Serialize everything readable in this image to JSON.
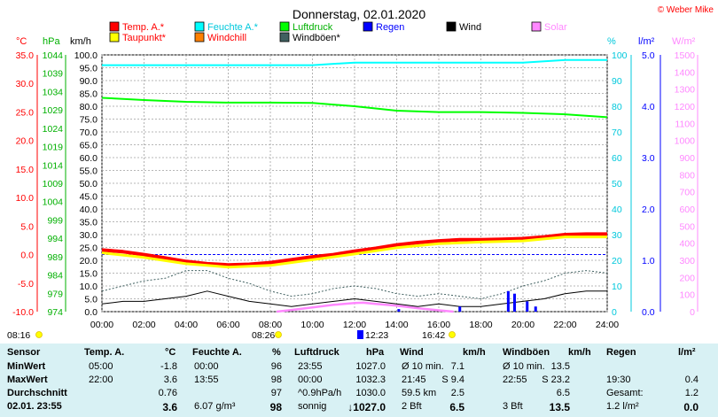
{
  "title": "Donnerstag, 02.01.2020",
  "credit": "© Weber Mike",
  "axes": {
    "celsius_unit": "°C",
    "hpa_unit": "hPa",
    "kmh_unit": "km/h",
    "percent_unit": "%",
    "rain_unit": "l/m²",
    "solar_unit": "W/m²",
    "celsius_ticks": [
      "35.0",
      "30.0",
      "25.0",
      "20.0",
      "15.0",
      "10.0",
      "5.0",
      "0.0",
      "-5.0",
      "-10.0"
    ],
    "hpa_ticks": [
      "1044",
      "1039",
      "1034",
      "1029",
      "1024",
      "1019",
      "1014",
      "1009",
      "1004",
      "999",
      "994",
      "989",
      "984",
      "979",
      "974"
    ],
    "kmh_ticks": [
      "100.0",
      "95.0",
      "90.0",
      "85.0",
      "80.0",
      "75.0",
      "70.0",
      "65.0",
      "60.0",
      "55.0",
      "50.0",
      "45.0",
      "40.0",
      "35.0",
      "30.0",
      "25.0",
      "20.0",
      "15.0",
      "10.0",
      "5.0",
      "0.0"
    ],
    "percent_ticks": [
      "100",
      "90",
      "80",
      "70",
      "60",
      "50",
      "40",
      "30",
      "20",
      "10",
      "0"
    ],
    "rain_ticks": [
      "5.0",
      "4.0",
      "3.0",
      "2.0",
      "1.0",
      "0.0"
    ],
    "solar_ticks": [
      "1500",
      "1400",
      "1300",
      "1200",
      "1100",
      "1000",
      "900",
      "800",
      "700",
      "600",
      "500",
      "400",
      "300",
      "200",
      "100",
      "0"
    ],
    "time_ticks": [
      "00:00",
      "02:00",
      "04:00",
      "06:00",
      "08:00",
      "10:00",
      "12:00",
      "14:00",
      "16:00",
      "18:00",
      "20:00",
      "22:00",
      "24:00"
    ]
  },
  "legend": [
    {
      "label": "Temp. A.*",
      "color": "#ff0000",
      "text_color": "#ff0000"
    },
    {
      "label": "Feuchte A.*",
      "color": "#00ffff",
      "text_color": "#00c8dc"
    },
    {
      "label": "Luftdruck",
      "color": "#00ff00",
      "text_color": "#00b000"
    },
    {
      "label": "Regen",
      "color": "#0000ff",
      "text_color": "#0000ff"
    },
    {
      "label": "Wind",
      "color": "#000000",
      "text_color": "#000000"
    },
    {
      "label": "Solar",
      "color": "#ff88ff",
      "text_color": "#ff88ff"
    },
    {
      "label": "Taupunkt*",
      "color": "#ffff00",
      "text_color": "#ff0000"
    },
    {
      "label": "Windchill",
      "color": "#ff8000",
      "text_color": "#ff0000"
    },
    {
      "label": "Windböen*",
      "color": "#406060",
      "text_color": "#000000"
    }
  ],
  "sun_markers": {
    "sunrise": "08:16",
    "sunset": "16:42",
    "solar_noon": "12:23",
    "civil_dawn": "08:26"
  },
  "chart_data": {
    "type": "line",
    "x_unit": "time of day (h)",
    "xlim": [
      0,
      24
    ],
    "series": [
      {
        "name": "Temp. A.",
        "axis": "°C",
        "color": "#ff0000",
        "x": [
          0,
          1,
          2,
          3,
          4,
          5,
          6,
          7,
          8,
          9,
          10,
          11,
          12,
          13,
          14,
          15,
          16,
          17,
          18,
          19,
          20,
          21,
          22,
          23,
          24
        ],
        "values": [
          0.8,
          0.5,
          0.0,
          -0.6,
          -1.2,
          -1.6,
          -1.8,
          -1.7,
          -1.4,
          -0.9,
          -0.4,
          0.0,
          0.6,
          1.1,
          1.7,
          2.1,
          2.4,
          2.6,
          2.6,
          2.7,
          2.8,
          3.1,
          3.5,
          3.6,
          3.6
        ]
      },
      {
        "name": "Taupunkt",
        "axis": "°C",
        "color": "#ffff00",
        "x": [
          0,
          2,
          4,
          6,
          8,
          10,
          12,
          14,
          16,
          18,
          20,
          22,
          24
        ],
        "values": [
          0.3,
          -0.5,
          -1.6,
          -2.2,
          -1.9,
          -0.9,
          0.1,
          1.2,
          1.9,
          2.2,
          2.4,
          3.1,
          3.1
        ]
      },
      {
        "name": "Feuchte A.",
        "axis": "%",
        "color": "#00ffff",
        "x": [
          0,
          2,
          4,
          6,
          8,
          10,
          12,
          14,
          16,
          18,
          20,
          22,
          24
        ],
        "values": [
          96,
          96,
          96,
          96,
          96,
          96,
          97,
          97,
          97,
          97,
          97,
          98,
          98
        ]
      },
      {
        "name": "Luftdruck",
        "axis": "hPa",
        "color": "#00ff00",
        "x": [
          0,
          2,
          4,
          6,
          8,
          10,
          12,
          14,
          16,
          18,
          20,
          22,
          24
        ],
        "values": [
          1032.3,
          1031.7,
          1031.2,
          1031.0,
          1031.0,
          1030.9,
          1030.0,
          1028.8,
          1028.4,
          1028.4,
          1028.2,
          1027.8,
          1027.0
        ]
      },
      {
        "name": "Wind",
        "axis": "km/h",
        "color": "#000000",
        "x": [
          0,
          1,
          2,
          3,
          4,
          5,
          6,
          7,
          8,
          9,
          10,
          11,
          12,
          13,
          14,
          15,
          16,
          17,
          18,
          19,
          20,
          21,
          22,
          23,
          24
        ],
        "values": [
          3,
          4,
          4,
          5,
          6,
          8,
          6,
          4,
          3,
          2,
          3,
          4,
          5,
          4,
          3,
          2,
          3,
          2,
          2,
          3,
          4,
          5,
          7,
          8,
          8
        ]
      },
      {
        "name": "Windböen",
        "axis": "km/h",
        "color": "#406060",
        "x": [
          0,
          1,
          2,
          3,
          4,
          5,
          6,
          7,
          8,
          9,
          10,
          11,
          12,
          13,
          14,
          15,
          16,
          17,
          18,
          19,
          20,
          21,
          22,
          23,
          24
        ],
        "values": [
          8,
          10,
          12,
          13,
          16,
          16,
          13,
          11,
          8,
          6,
          7,
          9,
          10,
          9,
          7,
          6,
          7,
          6,
          5,
          7,
          10,
          12,
          15,
          16,
          15
        ]
      },
      {
        "name": "Solar",
        "axis": "W/m²",
        "color": "#ff88ff",
        "x": [
          8.3,
          9,
          10,
          11,
          12,
          12.4,
          13,
          14,
          15,
          16,
          16.7
        ],
        "values": [
          0,
          10,
          25,
          40,
          50,
          52,
          45,
          35,
          20,
          8,
          0
        ]
      }
    ],
    "rain": {
      "axis": "l/m²",
      "x": [
        14.1,
        17.0,
        19.3,
        19.6,
        20.2,
        20.6
      ],
      "values": [
        0.05,
        0.1,
        0.4,
        0.35,
        0.2,
        0.1
      ]
    },
    "reference_line": {
      "axis": "°C",
      "value": 0.0
    },
    "ylim_celsius": [
      -10,
      35
    ],
    "ylim_hpa": [
      974,
      1044
    ],
    "ylim_kmh": [
      0,
      100
    ],
    "ylim_percent": [
      0,
      100
    ],
    "ylim_rain": [
      0,
      5
    ],
    "ylim_solar": [
      0,
      1500
    ],
    "grid": true
  },
  "table": {
    "header": [
      "Sensor",
      "Temp. A.",
      "°C",
      "Feuchte A.",
      "%",
      "Luftdruck",
      "hPa",
      "Wind",
      "km/h",
      "Windböen",
      "km/h",
      "Regen",
      "l/m²"
    ],
    "rows": [
      {
        "label": "MinWert",
        "cells": [
          "05:00",
          "-1.8",
          "00:00",
          "96",
          "23:55",
          "1027.0",
          "Ø 10 min.",
          "7.1",
          "Ø 10 min.",
          "13.5",
          "",
          ""
        ]
      },
      {
        "label": "MaxWert",
        "cells": [
          "22:00",
          "3.6",
          "13:55",
          "98",
          "00:00",
          "1032.3",
          "21:45",
          "S 9.4",
          "22:55",
          "S 23.2",
          "19:30",
          "0.4"
        ]
      },
      {
        "label": "Durchschnitt",
        "cells": [
          "",
          "0.76",
          "",
          "97",
          "^0.9hPa/h",
          "1030.0",
          "59.5 km",
          "2.5",
          "",
          "6.5",
          "Gesamt:",
          "1.2"
        ]
      },
      {
        "label": "02.01. 23:55",
        "cells": [
          "",
          "3.6",
          "6.07 g/m³",
          "98",
          "sonnig",
          "↓1027.0",
          "2 Bft",
          "6.5",
          "3 Bft",
          "13.5",
          "1.2 l/m²",
          "0.0"
        ]
      }
    ]
  }
}
